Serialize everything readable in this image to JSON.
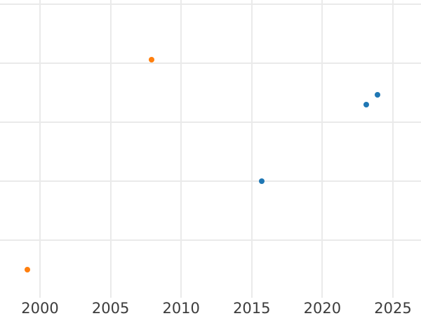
{
  "chart": {
    "background_color": "#ffffff",
    "gridline_color": "#eaeaea",
    "tick_label_color": "#3c3c3c"
  },
  "chart_data": {
    "type": "scatter",
    "title": "",
    "xlabel": "",
    "ylabel": "",
    "legend_position": "none",
    "grid": true,
    "x_tick_labels": [
      "2000",
      "2005",
      "2010",
      "2015",
      "2020",
      "2025"
    ],
    "x_tick_years": [
      2000,
      2005,
      2010,
      2015,
      2020,
      2025
    ],
    "x_range_visible": [
      1997.2,
      2027.0
    ],
    "y_range_visible": [
      0,
      5.07
    ],
    "y_gridline_units": [
      1,
      2,
      3,
      4,
      5
    ],
    "y_axis_note": "y-axis tick labels not visible in screenshot (chart is cropped); y values are expressed in unlabeled gridline units measured up from the plot bottom",
    "series": [
      {
        "name": "orange-series",
        "color": "#ff7f0e",
        "marker": "circle",
        "points": [
          {
            "x": 1999.1,
            "y": 0.5
          },
          {
            "x": 2007.9,
            "y": 4.06
          }
        ]
      },
      {
        "name": "blue-series",
        "color": "#1f77b4",
        "marker": "circle",
        "points": [
          {
            "x": 2015.7,
            "y": 2.0
          },
          {
            "x": 2023.1,
            "y": 3.3
          },
          {
            "x": 2023.9,
            "y": 3.46
          }
        ]
      }
    ]
  }
}
